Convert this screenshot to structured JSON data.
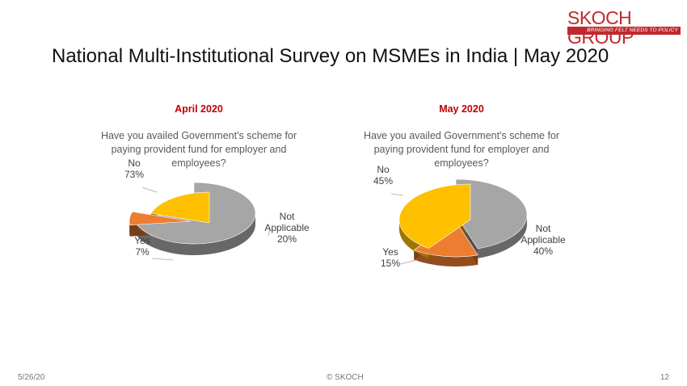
{
  "logo": {
    "name": "SKOCH GROUP",
    "tagline": "BRINGING FELT NEEDS TO POLICY"
  },
  "page_title": "National Multi-Institutional Survey on MSMEs in India | May 2020",
  "footer": {
    "date": "5/26/20",
    "copyright": "© SKOCH",
    "page_number": "12"
  },
  "colors": {
    "no": "#a6a6a6",
    "yes": "#ed7d31",
    "na": "#ffc000",
    "heading": "#c00000"
  },
  "chart_data": [
    {
      "type": "pie",
      "title": "April 2020",
      "subtitle_lines": [
        "Have you availed Government's scheme for",
        "paying provident fund for employer and",
        "employees?"
      ],
      "slices": [
        {
          "label": "No",
          "value": 73,
          "value_label": "73%",
          "color": "#a6a6a6"
        },
        {
          "label": "Yes",
          "value": 7,
          "value_label": "7%",
          "color": "#ed7d31"
        },
        {
          "label_lines": [
            "Not",
            "Applicable"
          ],
          "value": 20,
          "value_label": "20%",
          "color": "#ffc000"
        }
      ]
    },
    {
      "type": "pie",
      "title": "May 2020",
      "subtitle_lines": [
        "Have you availed Government's scheme for",
        "paying provident fund for employer and",
        "employees?"
      ],
      "slices": [
        {
          "label": "No",
          "value": 45,
          "value_label": "45%",
          "color": "#a6a6a6"
        },
        {
          "label": "Yes",
          "value": 15,
          "value_label": "15%",
          "color": "#ed7d31"
        },
        {
          "label_lines": [
            "Not",
            "Applicable"
          ],
          "value": 40,
          "value_label": "40%",
          "color": "#ffc000"
        }
      ]
    }
  ]
}
